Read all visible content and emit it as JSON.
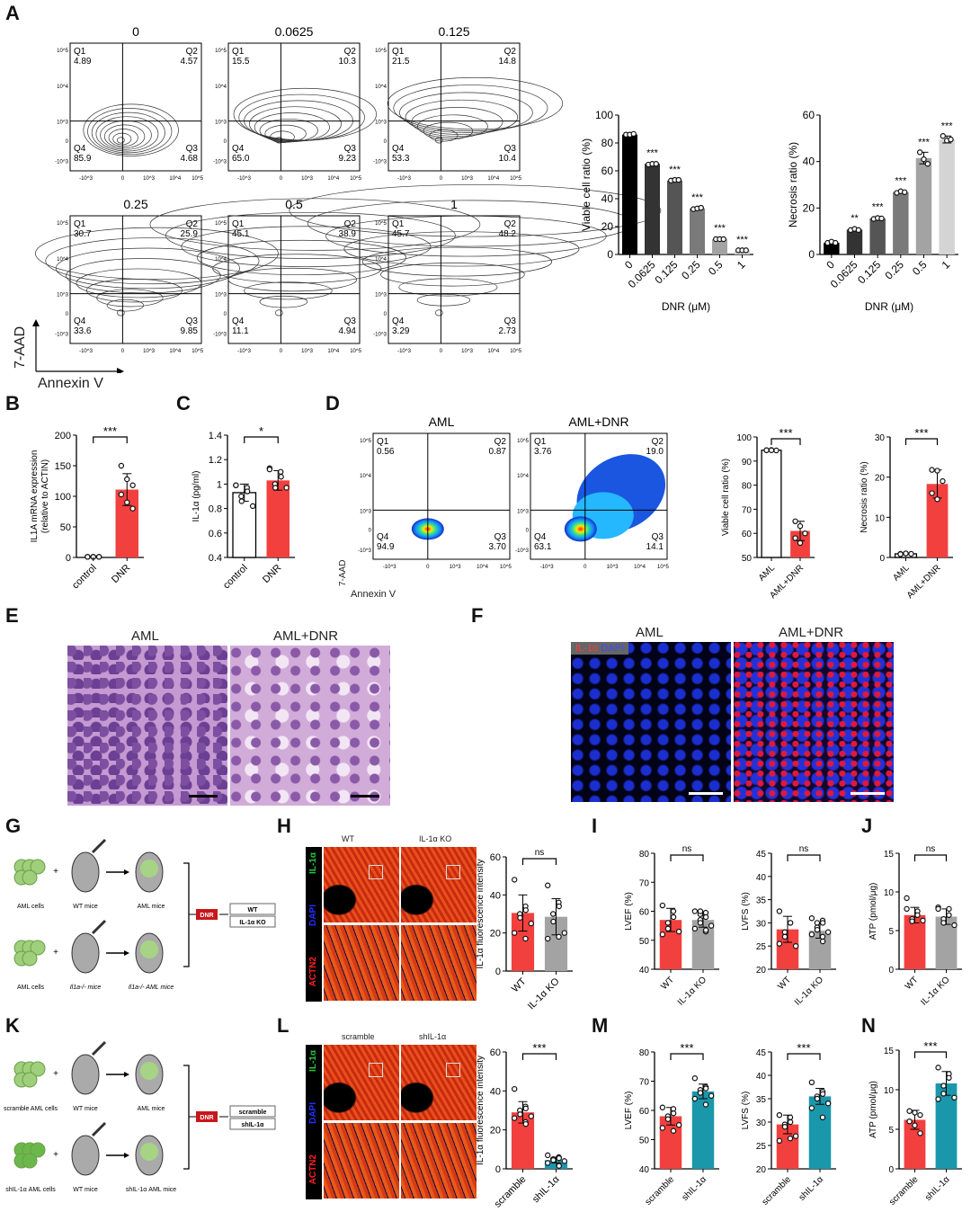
{
  "panel_letters": [
    "A",
    "B",
    "C",
    "D",
    "E",
    "F",
    "G",
    "H",
    "I",
    "J",
    "K",
    "L",
    "M",
    "N"
  ],
  "colors": {
    "red": "#f2403f",
    "grey": "#a3a3a3",
    "teal": "#1a97ab",
    "black": "#000000",
    "white": "#ffffff"
  },
  "flow_ticks": {
    "y": [
      "10^5",
      "10^4",
      "10^3",
      "0",
      "-10^3"
    ],
    "x": [
      "-10^3",
      "0",
      "10^3",
      "10^4",
      "10^5"
    ]
  },
  "flow_axes": {
    "y": "7-AAD",
    "x": "Annexin V"
  },
  "flow_A": [
    {
      "title": "0",
      "q": [
        "Q1",
        "Q2",
        "Q3",
        "Q4"
      ],
      "v": [
        "4.89",
        "4.57",
        "4.68",
        "85.9"
      ]
    },
    {
      "title": "0.0625",
      "q": [
        "Q1",
        "Q2",
        "Q3",
        "Q4"
      ],
      "v": [
        "15.5",
        "10.3",
        "9.23",
        "65.0"
      ]
    },
    {
      "title": "0.125",
      "q": [
        "Q1",
        "Q2",
        "Q3",
        "Q4"
      ],
      "v": [
        "21.5",
        "14.8",
        "10.4",
        "53.3"
      ]
    },
    {
      "title": "0.25",
      "q": [
        "Q1",
        "Q2",
        "Q3",
        "Q4"
      ],
      "v": [
        "30.7",
        "25.9",
        "9.85",
        "33.6"
      ]
    },
    {
      "title": "0.5",
      "q": [
        "Q1",
        "Q2",
        "Q3",
        "Q4"
      ],
      "v": [
        "45.1",
        "38.9",
        "4.94",
        "11.1"
      ]
    },
    {
      "title": "1",
      "q": [
        "Q1",
        "Q2",
        "Q3",
        "Q4"
      ],
      "v": [
        "45.7",
        "48.2",
        "2.73",
        "3.29"
      ]
    }
  ],
  "flow_D": [
    {
      "title": "AML",
      "q": [
        "Q1",
        "Q2",
        "Q3",
        "Q4"
      ],
      "v": [
        "0.56",
        "0.87",
        "3.70",
        "94.9"
      ]
    },
    {
      "title": "AML+DNR",
      "q": [
        "Q1",
        "Q2",
        "Q3",
        "Q4"
      ],
      "v": [
        "3.76",
        "19.0",
        "14.1",
        "63.1"
      ]
    }
  ],
  "images": {
    "E": {
      "titles": [
        "AML",
        "AML+DNR"
      ]
    },
    "F": {
      "titles": [
        "AML",
        "AML+DNR"
      ],
      "legend_red": "IL-1α",
      "legend_blue": "DAPI"
    },
    "H": {
      "titles": [
        "WT",
        "IL-1α KO"
      ],
      "stains": [
        "IL-1α",
        "DAPI",
        "ACTN2"
      ]
    },
    "L": {
      "titles": [
        "scramble",
        "shIL-1α"
      ],
      "stains": [
        "IL-1α",
        "DAPI",
        "ACTN2"
      ]
    }
  },
  "diagram_G": {
    "row1": [
      "AML cells",
      "WT mice",
      "AML mice"
    ],
    "row2": [
      "AML cells",
      "Il1a-/- mice",
      "Il1a-/- AML mice"
    ],
    "drug": "DNR",
    "groups": [
      "WT",
      "IL-1α KO"
    ]
  },
  "diagram_K": {
    "row1": [
      "scramble AML cells",
      "WT mice",
      "AML mice"
    ],
    "row2": [
      "shIL-1α AML cells",
      "WT mice",
      "shIL-1α AML mice"
    ],
    "drug": "DNR",
    "groups": [
      "scramble",
      "shIL-1α"
    ]
  },
  "chart_data": [
    {
      "id": "A_viable",
      "type": "bar",
      "ylabel": "Viable cell ratio (%)",
      "xlabel": "DNR (μM)",
      "categories": [
        "0",
        "0.0625",
        "0.125",
        "0.25",
        "0.5",
        "1"
      ],
      "values": [
        86,
        65,
        53,
        33,
        11,
        3
      ],
      "sd": [
        0.5,
        0.5,
        0.5,
        0.7,
        0.5,
        0.3
      ],
      "points": [
        [
          86,
          86,
          86.5
        ],
        [
          64.5,
          65,
          65
        ],
        [
          53,
          53.5,
          53.5
        ],
        [
          32.5,
          33,
          33.5
        ],
        [
          11,
          11,
          11
        ],
        [
          3,
          3,
          3
        ]
      ],
      "ylim": [
        0,
        100
      ],
      "ticks": [
        0,
        20,
        40,
        60,
        80,
        100
      ],
      "fills": [
        "#000000",
        "#333333",
        "#555555",
        "#7a7a7a",
        "#a3a3a3",
        "#cfcfcf"
      ],
      "sig": [
        "",
        "***",
        "***",
        "***",
        "***",
        "***"
      ],
      "bracket": false
    },
    {
      "id": "A_necrosis",
      "type": "bar",
      "ylabel": "Necrosis ratio (%)",
      "xlabel": "DNR (μM)",
      "categories": [
        "0",
        "0.0625",
        "0.125",
        "0.25",
        "0.5",
        "1"
      ],
      "values": [
        5,
        10.7,
        15.5,
        26.8,
        41.5,
        49.5
      ],
      "sd": [
        0.4,
        0.5,
        0.5,
        0.5,
        2.5,
        1.5
      ],
      "points": [
        [
          5,
          5.5,
          5
        ],
        [
          10.5,
          11,
          10.5
        ],
        [
          15.3,
          15.7,
          15.5
        ],
        [
          26.5,
          27.2,
          26.8
        ],
        [
          44,
          41,
          39
        ],
        [
          51,
          49,
          49.5
        ]
      ],
      "ylim": [
        0,
        60
      ],
      "ticks": [
        0,
        20,
        40,
        60
      ],
      "fills": [
        "#000000",
        "#333333",
        "#555555",
        "#7a7a7a",
        "#a3a3a3",
        "#d4d4d4"
      ],
      "sig": [
        "",
        "**",
        "***",
        "***",
        "***",
        "***"
      ],
      "bracket": false
    },
    {
      "id": "B",
      "type": "bar",
      "ylabel": "IL1A mRNA expression",
      "ylabel2": "(relative to ACTIN)",
      "categories": [
        "control",
        "DNR"
      ],
      "values": [
        0.8,
        111
      ],
      "sd": [
        0.3,
        26
      ],
      "points": [
        [
          1,
          1,
          1,
          1,
          1,
          1
        ],
        [
          150,
          128,
          118,
          103,
          90,
          80
        ]
      ],
      "ylim": [
        0,
        200
      ],
      "ticks": [
        0,
        50,
        100,
        150,
        200
      ],
      "fills": [
        "#000000",
        "#f2403f"
      ],
      "sig": "***",
      "bracket": true
    },
    {
      "id": "C",
      "type": "bar",
      "ylabel": "IL-1α (pg/ml)",
      "categories": [
        "control",
        "DNR"
      ],
      "values": [
        0.93,
        1.03
      ],
      "sd": [
        0.07,
        0.08
      ],
      "points": [
        [
          0.99,
          0.97,
          0.94,
          0.9,
          0.86,
          0.82,
          0.99
        ],
        [
          1.13,
          1.1,
          1.06,
          1.0,
          0.97,
          0.97,
          1.12
        ]
      ],
      "ylim": [
        0.4,
        1.4
      ],
      "ticks": [
        0.4,
        0.6,
        0.8,
        1.0,
        1.2,
        1.4
      ],
      "fills": [
        "#ffffff",
        "#f2403f"
      ],
      "sig": "*",
      "bracket": true
    },
    {
      "id": "D_viable",
      "type": "bar",
      "ylabel": "Viable cell ratio (%)",
      "categories": [
        "AML",
        "AML+DNR"
      ],
      "values": [
        94.5,
        61
      ],
      "sd": [
        0.3,
        4
      ],
      "points": [
        [
          94.5,
          94.6,
          94.4,
          94.5,
          94.5
        ],
        [
          65,
          63,
          60,
          58,
          56
        ]
      ],
      "ylim": [
        50,
        100
      ],
      "ticks": [
        50,
        60,
        70,
        80,
        90,
        100
      ],
      "fills": [
        "#ffffff",
        "#f2403f"
      ],
      "sig": "***",
      "bracket": true
    },
    {
      "id": "D_necrosis",
      "type": "bar",
      "ylabel": "Necrosis ratio (%)",
      "categories": [
        "AML",
        "AML+DNR"
      ],
      "values": [
        0.9,
        18.3
      ],
      "sd": [
        0.2,
        3.5
      ],
      "points": [
        [
          0.9,
          1,
          0.9,
          0.8,
          1
        ],
        [
          21.8,
          21.6,
          19,
          16,
          14.5
        ]
      ],
      "ylim": [
        0,
        30
      ],
      "ticks": [
        0,
        10,
        20,
        30
      ],
      "fills": [
        "#ffffff",
        "#f2403f"
      ],
      "sig": "***",
      "bracket": true
    },
    {
      "id": "H",
      "type": "bar",
      "ylabel": "IL-1α fluorescence intensity",
      "categories": [
        "WT",
        "IL-1α KO"
      ],
      "values": [
        30.5,
        28.5
      ],
      "sd": [
        9.5,
        9.5
      ],
      "points": [
        [
          48,
          34,
          32,
          30,
          28,
          25,
          20,
          17
        ],
        [
          45,
          36,
          34,
          30,
          26,
          20,
          17,
          18
        ]
      ],
      "ylim": [
        0,
        60
      ],
      "ticks": [
        0,
        20,
        40,
        60
      ],
      "fills": [
        "#f2403f",
        "#a3a3a3"
      ],
      "sig": "ns",
      "bracket": true
    },
    {
      "id": "I_LVEF",
      "type": "bar",
      "ylabel": "LVEF (%)",
      "categories": [
        "WT",
        "IL-1α KO"
      ],
      "values": [
        57,
        57
      ],
      "sd": [
        4,
        2.5
      ],
      "points": [
        [
          62,
          60,
          58,
          56,
          54,
          53,
          52
        ],
        [
          60,
          59.5,
          58,
          57,
          56,
          55,
          54,
          53,
          53.5,
          59,
          60
        ]
      ],
      "ylim": [
        40,
        80
      ],
      "ticks": [
        40,
        50,
        60,
        70,
        80
      ],
      "fills": [
        "#f2403f",
        "#a3a3a3"
      ],
      "sig": "ns",
      "bracket": true
    },
    {
      "id": "I_LVFS",
      "type": "bar",
      "ylabel": "LVFS (%)",
      "categories": [
        "WT",
        "IL-1α KO"
      ],
      "values": [
        28.6,
        28.3
      ],
      "sd": [
        2.8,
        1.6
      ],
      "points": [
        [
          32.5,
          30,
          30,
          28,
          27,
          25,
          25.5
        ],
        [
          31,
          30.5,
          30,
          29,
          28.5,
          28,
          27.5,
          27,
          26,
          30
        ]
      ],
      "ylim": [
        20,
        45
      ],
      "ticks": [
        20,
        25,
        30,
        35,
        40,
        45
      ],
      "fills": [
        "#f2403f",
        "#a3a3a3"
      ],
      "sig": "ns",
      "bracket": true
    },
    {
      "id": "J",
      "type": "bar",
      "ylabel": "ATP (pmol/μg)",
      "categories": [
        "WT",
        "IL-1α KO"
      ],
      "values": [
        7,
        6.8
      ],
      "sd": [
        1,
        1
      ],
      "points": [
        [
          9.2,
          7.5,
          7,
          6.5,
          6.2,
          6.3,
          7.8
        ],
        [
          8,
          7.8,
          7,
          6.5,
          6,
          5.7,
          7.8
        ]
      ],
      "ylim": [
        0,
        15
      ],
      "ticks": [
        0,
        5,
        10,
        15
      ],
      "fills": [
        "#f2403f",
        "#a3a3a3"
      ],
      "sig": "ns",
      "bracket": true
    },
    {
      "id": "L",
      "type": "bar",
      "ylabel": "IL-1α fluorescence intensity",
      "categories": [
        "scramble",
        "shIL-1α"
      ],
      "values": [
        29,
        4.5
      ],
      "sd": [
        5.5,
        1.5
      ],
      "points": [
        [
          41,
          32,
          31,
          30,
          28,
          27,
          26,
          24,
          23
        ],
        [
          7,
          6,
          5.5,
          5,
          4.5,
          4,
          3,
          2,
          1.5
        ]
      ],
      "ylim": [
        0,
        60
      ],
      "ticks": [
        0,
        20,
        40,
        60
      ],
      "fills": [
        "#f2403f",
        "#1a97ab"
      ],
      "sig": "***",
      "bracket": true
    },
    {
      "id": "M_LVEF",
      "type": "bar",
      "ylabel": "LVEF (%)",
      "categories": [
        "scramble",
        "shIL-1α"
      ],
      "values": [
        58,
        66.5
      ],
      "sd": [
        3,
        2.5
      ],
      "points": [
        [
          61,
          60.5,
          59,
          58,
          57,
          55,
          54,
          53
        ],
        [
          71,
          68,
          67.5,
          67,
          66,
          65,
          64,
          62
        ]
      ],
      "ylim": [
        40,
        80
      ],
      "ticks": [
        40,
        50,
        60,
        70,
        80
      ],
      "fills": [
        "#f2403f",
        "#1a97ab"
      ],
      "sig": "***",
      "bracket": true
    },
    {
      "id": "M_LVFS",
      "type": "bar",
      "ylabel": "LVFS (%)",
      "categories": [
        "scramble",
        "shIL-1α"
      ],
      "values": [
        29.5,
        35.5
      ],
      "sd": [
        2,
        1.7
      ],
      "points": [
        [
          31.5,
          31,
          30,
          29.5,
          29,
          27,
          26,
          26.5
        ],
        [
          38.5,
          36.5,
          36,
          35.5,
          35,
          34,
          33,
          31
        ]
      ],
      "ylim": [
        20,
        45
      ],
      "ticks": [
        20,
        25,
        30,
        35,
        40,
        45
      ],
      "fills": [
        "#f2403f",
        "#1a97ab"
      ],
      "sig": "***",
      "bracket": true
    },
    {
      "id": "N",
      "type": "bar",
      "ylabel": "ATP (pmol/μg)",
      "categories": [
        "scramble",
        "shIL-1α"
      ],
      "values": [
        6.2,
        10.8
      ],
      "sd": [
        1.2,
        1.5
      ],
      "points": [
        [
          7.3,
          7.1,
          6.8,
          6,
          5.5,
          4.5
        ],
        [
          12.8,
          12,
          11.5,
          10.5,
          9.5,
          9,
          8.8
        ]
      ],
      "ylim": [
        0,
        15
      ],
      "ticks": [
        0,
        5,
        10,
        15
      ],
      "fills": [
        "#f2403f",
        "#1a97ab"
      ],
      "sig": "***",
      "bracket": true
    }
  ]
}
